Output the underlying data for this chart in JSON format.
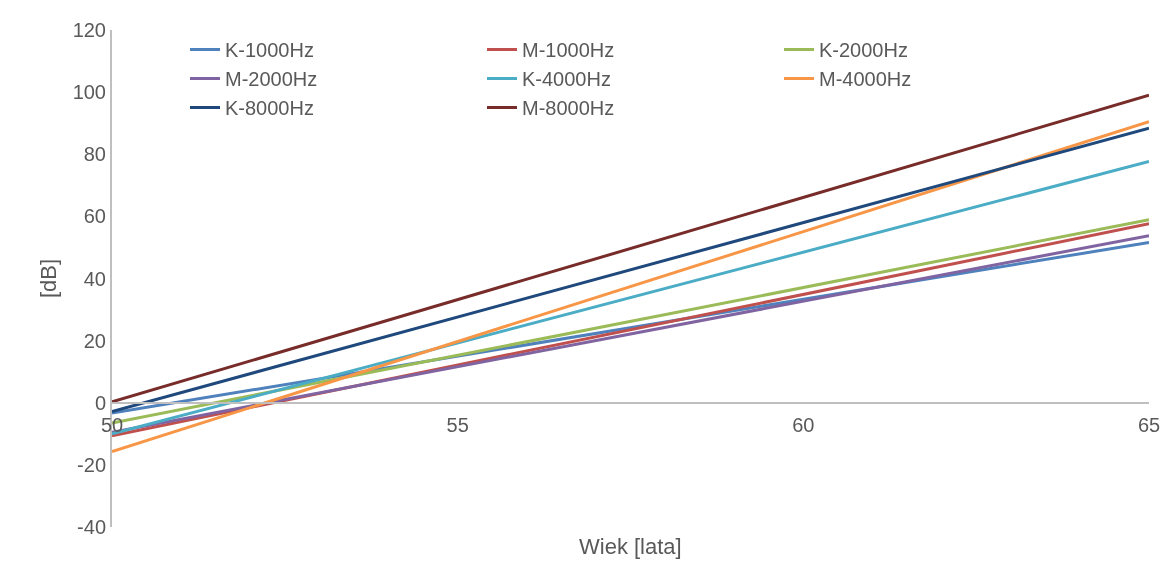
{
  "chart_data": {
    "type": "line",
    "xlabel": "Wiek [lata]",
    "ylabel": "[dB]",
    "x": [
      50,
      65
    ],
    "xlim": [
      50,
      65
    ],
    "xticks": [
      50,
      55,
      60,
      65
    ],
    "ylim": [
      -40,
      120
    ],
    "yticks": [
      -40,
      -20,
      0,
      20,
      40,
      60,
      80,
      100,
      120
    ],
    "grid": false,
    "legend": "top",
    "marker": "none",
    "line_style": "solid",
    "series": [
      {
        "name": "K-1000Hz",
        "color": "#4f81bd",
        "values": [
          -3.3,
          51.6
        ]
      },
      {
        "name": "M-1000Hz",
        "color": "#c0504d",
        "values": [
          -10.6,
          57.6
        ]
      },
      {
        "name": "K-2000Hz",
        "color": "#9bbb59",
        "values": [
          -6.5,
          58.9
        ]
      },
      {
        "name": "M-2000Hz",
        "color": "#8064a2",
        "values": [
          -9.5,
          53.8
        ]
      },
      {
        "name": "K-4000Hz",
        "color": "#4bacc6",
        "values": [
          -10,
          77.7
        ]
      },
      {
        "name": "M-4000Hz",
        "color": "#f79646",
        "values": [
          -15.7,
          90.5
        ]
      },
      {
        "name": "K-8000Hz",
        "color": "#1f497d",
        "values": [
          -2.8,
          88.4
        ]
      },
      {
        "name": "M-8000Hz",
        "color": "#772c2a",
        "values": [
          0.3,
          99
        ]
      }
    ]
  }
}
